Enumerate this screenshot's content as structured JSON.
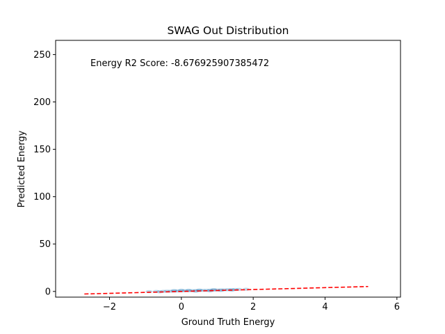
{
  "chart_data": {
    "type": "scatter",
    "title": "SWAG Out Distribution",
    "xlabel": "Ground Truth Energy",
    "ylabel": "Predicted Energy",
    "xlim": [
      -3.5,
      6.1
    ],
    "ylim": [
      -6,
      265
    ],
    "xticks": [
      -2,
      0,
      2,
      4,
      6
    ],
    "yticks": [
      0,
      50,
      100,
      150,
      200,
      250
    ],
    "annotation": "Energy R2 Score: -8.676925907385472",
    "grid": false,
    "colors": {
      "points": "#1f77b4",
      "reference_line": "#ff0000"
    },
    "reference_line": {
      "style": "dashed",
      "x": [
        -2.7,
        5.2
      ],
      "y": [
        -2.7,
        5.2
      ]
    },
    "series": [
      {
        "kind": "density-scatter",
        "x": [
          -0.9,
          -0.7,
          -0.5,
          -0.4,
          -0.3,
          -0.2,
          -0.1,
          0.0,
          0.1,
          0.2,
          0.3,
          0.4,
          0.5,
          0.6,
          0.7,
          0.8,
          0.9,
          1.0,
          1.1,
          1.2,
          1.3,
          1.4,
          1.5,
          1.6,
          1.8,
          -0.6,
          -0.2,
          0.2,
          0.5,
          0.8,
          1.1,
          1.4,
          0.0,
          0.4,
          0.9
        ],
        "y": [
          -0.2,
          0.0,
          0.1,
          0.3,
          0.2,
          0.4,
          0.5,
          0.6,
          0.7,
          0.7,
          0.8,
          0.9,
          1.0,
          1.1,
          1.2,
          1.3,
          1.4,
          1.5,
          1.6,
          1.7,
          1.8,
          1.9,
          2.0,
          2.1,
          2.3,
          -0.4,
          0.9,
          1.2,
          1.4,
          0.6,
          1.0,
          1.3,
          1.3,
          0.2,
          1.9
        ]
      }
    ]
  }
}
